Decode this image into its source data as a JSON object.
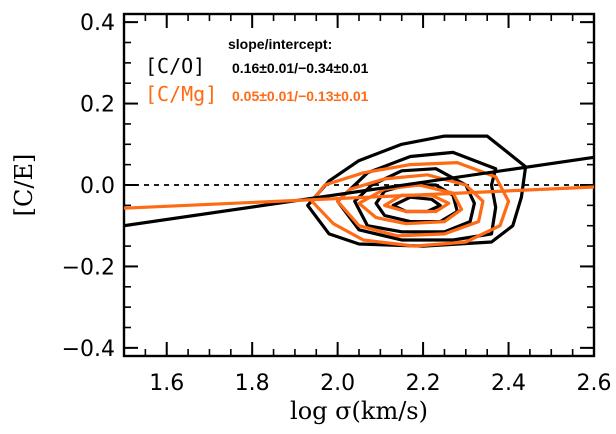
{
  "chart_data": {
    "type": "line",
    "xlabel": "log σ(km/s)",
    "ylabel": "[C/E]",
    "xlim": [
      1.5,
      2.6
    ],
    "ylim": [
      -0.42,
      0.42
    ],
    "x_ticks": [
      "1.6",
      "1.8",
      "2.0",
      "2.2",
      "2.4",
      "2.6"
    ],
    "y_ticks": [
      "0.4",
      "0.2",
      "0.0",
      "−0.2",
      "−0.4"
    ],
    "reference_line": {
      "y": 0.0,
      "style": "dashed"
    },
    "legend": {
      "header": "slope/intercept:",
      "entries": [
        {
          "label": "[C/O]",
          "values": "0.16±0.01/−0.34±0.01",
          "color": "#000000"
        },
        {
          "label": "[C/Mg]",
          "values": "0.05±0.01/−0.13±0.01",
          "color": "#ff6a14"
        }
      ]
    },
    "series": [
      {
        "name": "[C/O]",
        "color": "#000000",
        "fit": {
          "x": [
            1.5,
            2.6
          ],
          "y": [
            -0.1,
            0.068
          ]
        },
        "contours": [
          [
            [
              1.93,
              -0.05
            ],
            [
              1.98,
              -0.12
            ],
            [
              2.05,
              -0.145
            ],
            [
              2.2,
              -0.15
            ],
            [
              2.36,
              -0.14
            ],
            [
              2.41,
              -0.1
            ],
            [
              2.43,
              -0.03
            ],
            [
              2.44,
              0.045
            ],
            [
              2.35,
              0.12
            ],
            [
              2.25,
              0.12
            ],
            [
              2.15,
              0.1
            ],
            [
              2.05,
              0.06
            ],
            [
              1.98,
              0.01
            ],
            [
              1.93,
              -0.05
            ]
          ],
          [
            [
              2.0,
              -0.04
            ],
            [
              2.05,
              -0.11
            ],
            [
              2.15,
              -0.135
            ],
            [
              2.27,
              -0.135
            ],
            [
              2.36,
              -0.12
            ],
            [
              2.37,
              -0.055
            ],
            [
              2.36,
              0.0
            ],
            [
              2.37,
              0.04
            ],
            [
              2.27,
              0.08
            ],
            [
              2.17,
              0.07
            ],
            [
              2.07,
              0.03
            ],
            [
              2.0,
              -0.04
            ]
          ],
          [
            [
              2.04,
              -0.04
            ],
            [
              2.07,
              -0.1
            ],
            [
              2.15,
              -0.115
            ],
            [
              2.25,
              -0.115
            ],
            [
              2.31,
              -0.09
            ],
            [
              2.32,
              -0.045
            ],
            [
              2.3,
              0.0
            ],
            [
              2.23,
              0.04
            ],
            [
              2.15,
              0.035
            ],
            [
              2.08,
              0.0
            ],
            [
              2.04,
              -0.04
            ]
          ],
          [
            [
              2.09,
              -0.045
            ],
            [
              2.11,
              -0.075
            ],
            [
              2.17,
              -0.09
            ],
            [
              2.24,
              -0.09
            ],
            [
              2.28,
              -0.065
            ],
            [
              2.27,
              -0.025
            ],
            [
              2.23,
              0.0
            ],
            [
              2.16,
              0.0
            ],
            [
              2.11,
              -0.015
            ],
            [
              2.09,
              -0.045
            ]
          ],
          [
            [
              2.13,
              -0.05
            ],
            [
              2.16,
              -0.065
            ],
            [
              2.21,
              -0.065
            ],
            [
              2.24,
              -0.05
            ],
            [
              2.22,
              -0.035
            ],
            [
              2.17,
              -0.03
            ],
            [
              2.13,
              -0.05
            ]
          ]
        ]
      },
      {
        "name": "[C/Mg]",
        "color": "#ff6a14",
        "fit": {
          "x": [
            1.5,
            2.6
          ],
          "y": [
            -0.057,
            -0.005
          ]
        },
        "contours": [
          [
            [
              1.94,
              -0.04
            ],
            [
              1.99,
              -0.095
            ],
            [
              2.06,
              -0.135
            ],
            [
              2.18,
              -0.15
            ],
            [
              2.3,
              -0.14
            ],
            [
              2.38,
              -0.1
            ],
            [
              2.4,
              -0.04
            ],
            [
              2.37,
              0.02
            ],
            [
              2.28,
              0.055
            ],
            [
              2.17,
              0.05
            ],
            [
              2.06,
              0.03
            ],
            [
              1.97,
              0.0
            ],
            [
              1.94,
              -0.04
            ]
          ],
          [
            [
              2.0,
              -0.04
            ],
            [
              2.05,
              -0.1
            ],
            [
              2.14,
              -0.125
            ],
            [
              2.25,
              -0.12
            ],
            [
              2.33,
              -0.09
            ],
            [
              2.34,
              -0.04
            ],
            [
              2.3,
              0.0
            ],
            [
              2.21,
              0.025
            ],
            [
              2.11,
              0.015
            ],
            [
              2.03,
              -0.01
            ],
            [
              2.0,
              -0.04
            ]
          ],
          [
            [
              2.05,
              -0.045
            ],
            [
              2.09,
              -0.08
            ],
            [
              2.16,
              -0.095
            ],
            [
              2.25,
              -0.09
            ],
            [
              2.29,
              -0.06
            ],
            [
              2.27,
              -0.02
            ],
            [
              2.19,
              0.0
            ],
            [
              2.11,
              -0.01
            ],
            [
              2.05,
              -0.045
            ]
          ],
          [
            [
              2.11,
              -0.05
            ],
            [
              2.16,
              -0.065
            ],
            [
              2.23,
              -0.065
            ],
            [
              2.26,
              -0.045
            ],
            [
              2.22,
              -0.025
            ],
            [
              2.15,
              -0.025
            ],
            [
              2.11,
              -0.05
            ]
          ]
        ]
      }
    ]
  }
}
